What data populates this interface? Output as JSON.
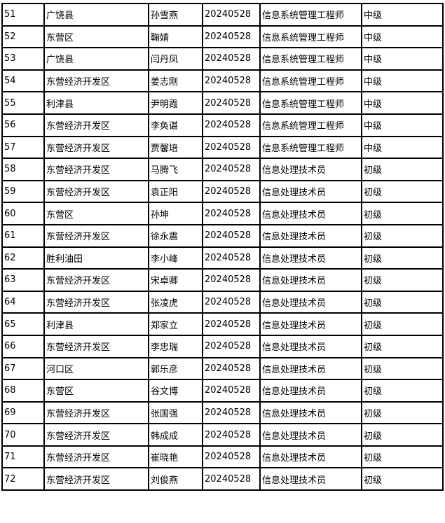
{
  "rows": [
    [
      "51",
      "广饶县",
      "孙雪燕",
      "20240528",
      "信息系统管理工程师",
      "中级"
    ],
    [
      "52",
      "东营区",
      "鞠婧",
      "20240528",
      "信息系统管理工程师",
      "中级"
    ],
    [
      "53",
      "广饶县",
      "闫丹凤",
      "20240528",
      "信息系统管理工程师",
      "中级"
    ],
    [
      "54",
      "东营经济开发区",
      "姜志刚",
      "20240528",
      "信息系统管理工程师",
      "中级"
    ],
    [
      "55",
      "利津县",
      "尹明霞",
      "20240528",
      "信息系统管理工程师",
      "中级"
    ],
    [
      "56",
      "东营经济开发区",
      "李奂谌",
      "20240528",
      "信息系统管理工程师",
      "中级"
    ],
    [
      "57",
      "东营经济开发区",
      "贾馨培",
      "20240528",
      "信息系统管理工程师",
      "中级"
    ],
    [
      "58",
      "东营经济开发区",
      "马腾飞",
      "20240528",
      "信息处理技术员",
      "初级"
    ],
    [
      "59",
      "东营经济开发区",
      "袁正阳",
      "20240528",
      "信息处理技术员",
      "初级"
    ],
    [
      "60",
      "东营区",
      "孙坤",
      "20240528",
      "信息处理技术员",
      "初级"
    ],
    [
      "61",
      "东营经济开发区",
      "徐永震",
      "20240528",
      "信息处理技术员",
      "初级"
    ],
    [
      "62",
      "胜利油田",
      "李小峰",
      "20240528",
      "信息处理技术员",
      "初级"
    ],
    [
      "63",
      "东营经济开发区",
      "宋卓卿",
      "20240528",
      "信息处理技术员",
      "初级"
    ],
    [
      "64",
      "东营经济开发区",
      "张凌虎",
      "20240528",
      "信息处理技术员",
      "初级"
    ],
    [
      "65",
      "利津县",
      "郑家立",
      "20240528",
      "信息处理技术员",
      "初级"
    ],
    [
      "66",
      "东营经济开发区",
      "李忠瑞",
      "20240528",
      "信息处理技术员",
      "初级"
    ],
    [
      "67",
      "河口区",
      "郭乐彦",
      "20240528",
      "信息处理技术员",
      "初级"
    ],
    [
      "68",
      "东营区",
      "谷文博",
      "20240528",
      "信息处理技术员",
      "初级"
    ],
    [
      "69",
      "东营经济开发区",
      "张国强",
      "20240528",
      "信息处理技术员",
      "初级"
    ],
    [
      "70",
      "东营经济开发区",
      "韩成成",
      "20240528",
      "信息处理技术员",
      "初级"
    ],
    [
      "71",
      "东营经济开发区",
      "崔晓艳",
      "20240528",
      "信息处理技术员",
      "初级"
    ],
    [
      "72",
      "东营经济开发区",
      "刘俊燕",
      "20240528",
      "信息处理技术员",
      "初级"
    ]
  ]
}
